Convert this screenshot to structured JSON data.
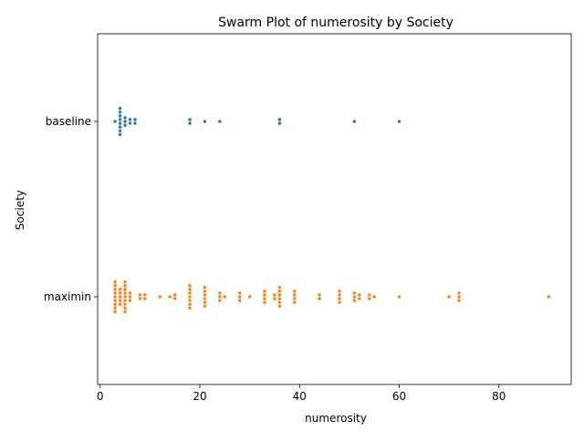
{
  "chart_data": {
    "type": "scatter",
    "subtype": "swarm",
    "title": "Swarm Plot of numerosity by Society",
    "xlabel": "numerosity",
    "ylabel": "Society",
    "xlim": [
      -0.5,
      94.5
    ],
    "xticks": [
      0,
      20,
      40,
      60,
      80
    ],
    "categories": [
      "baseline",
      "maximin"
    ],
    "grid": false,
    "legend": "none",
    "series": [
      {
        "name": "baseline",
        "color": "#1f77b4",
        "values": [
          3,
          4,
          4,
          4,
          4,
          4,
          4,
          4,
          4,
          5,
          5,
          5,
          6,
          6,
          7,
          7,
          18,
          18,
          21,
          24,
          36,
          36,
          51,
          60
        ]
      },
      {
        "name": "maximin",
        "color": "#ff7f0e",
        "values": [
          3,
          3,
          3,
          3,
          3,
          3,
          3,
          3,
          3,
          4,
          4,
          4,
          4,
          4,
          5,
          5,
          5,
          5,
          5,
          5,
          5,
          5,
          5,
          6,
          6,
          6,
          8,
          8,
          9,
          9,
          12,
          14,
          15,
          15,
          18,
          18,
          18,
          18,
          18,
          18,
          18,
          21,
          21,
          21,
          21,
          21,
          21,
          24,
          24,
          24,
          25,
          28,
          28,
          28,
          30,
          33,
          33,
          33,
          33,
          35,
          35,
          36,
          36,
          36,
          36,
          36,
          36,
          39,
          39,
          39,
          39,
          44,
          44,
          48,
          48,
          48,
          48,
          51,
          51,
          51,
          52,
          52,
          54,
          54,
          55,
          60,
          70,
          72,
          72,
          72,
          90
        ]
      }
    ]
  }
}
